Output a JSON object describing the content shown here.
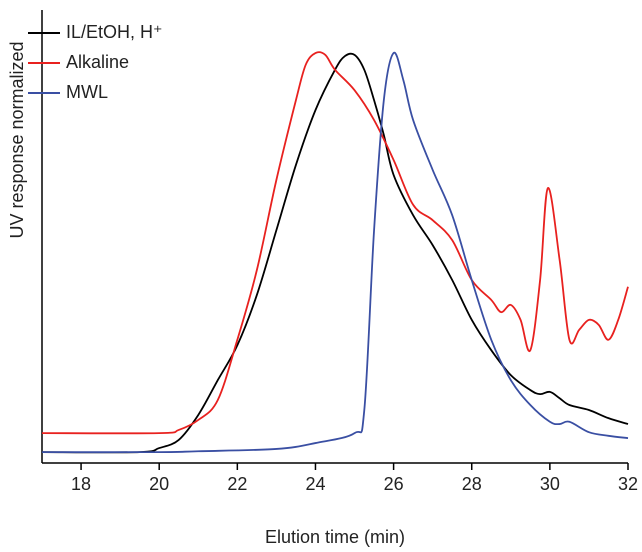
{
  "chart_data": {
    "type": "line",
    "x_label": "Elution time (min)",
    "y_label": "UV response normalized",
    "xlim": [
      17,
      32
    ],
    "xticks": [
      18,
      20,
      22,
      24,
      26,
      28,
      30,
      32
    ],
    "ylim": [
      0,
      1
    ],
    "legend": "upper-left",
    "series": [
      {
        "name": "IL/EtOH, H⁺",
        "color": "#000000",
        "x": [
          17,
          19.5,
          20,
          20.5,
          21,
          21.5,
          22,
          22.5,
          23,
          23.5,
          24,
          24.5,
          24.75,
          25,
          25.25,
          25.5,
          25.75,
          26,
          26.5,
          27,
          27.5,
          28,
          28.5,
          29,
          29.5,
          29.75,
          30,
          30.25,
          30.5,
          31,
          31.5,
          32
        ],
        "values": [
          0.024,
          0.024,
          0.033,
          0.051,
          0.106,
          0.183,
          0.26,
          0.371,
          0.514,
          0.658,
          0.779,
          0.868,
          0.898,
          0.901,
          0.868,
          0.801,
          0.724,
          0.636,
          0.547,
          0.481,
          0.404,
          0.316,
          0.249,
          0.194,
          0.161,
          0.152,
          0.157,
          0.143,
          0.128,
          0.117,
          0.099,
          0.086
        ]
      },
      {
        "name": "Alkaline",
        "color": "#e8211f",
        "x": [
          17,
          20,
          20.5,
          21,
          21.5,
          22,
          22.5,
          23,
          23.5,
          23.75,
          24,
          24.25,
          24.5,
          25,
          25.5,
          26,
          26.5,
          27,
          27.5,
          28,
          28.5,
          28.75,
          29,
          29.25,
          29.5,
          29.75,
          29.95,
          30.25,
          30.5,
          30.75,
          31,
          31.25,
          31.5,
          31.75,
          32
        ],
        "values": [
          0.066,
          0.066,
          0.073,
          0.095,
          0.139,
          0.272,
          0.426,
          0.625,
          0.801,
          0.879,
          0.905,
          0.901,
          0.868,
          0.823,
          0.757,
          0.669,
          0.57,
          0.536,
          0.492,
          0.404,
          0.36,
          0.333,
          0.349,
          0.316,
          0.249,
          0.404,
          0.607,
          0.448,
          0.272,
          0.294,
          0.316,
          0.305,
          0.272,
          0.316,
          0.389
        ]
      },
      {
        "name": "MWL",
        "color": "#3a4fa3",
        "x": [
          17,
          20,
          21,
          23,
          24,
          25,
          25.25,
          25.5,
          25.75,
          26,
          26.25,
          26.5,
          27,
          27.5,
          28,
          28.5,
          29,
          29.5,
          30,
          30.25,
          30.5,
          31,
          31.5,
          32
        ],
        "values": [
          0.024,
          0.024,
          0.026,
          0.031,
          0.044,
          0.066,
          0.117,
          0.514,
          0.801,
          0.905,
          0.845,
          0.757,
          0.647,
          0.547,
          0.404,
          0.272,
          0.183,
          0.128,
          0.091,
          0.086,
          0.091,
          0.068,
          0.06,
          0.055
        ]
      }
    ]
  }
}
